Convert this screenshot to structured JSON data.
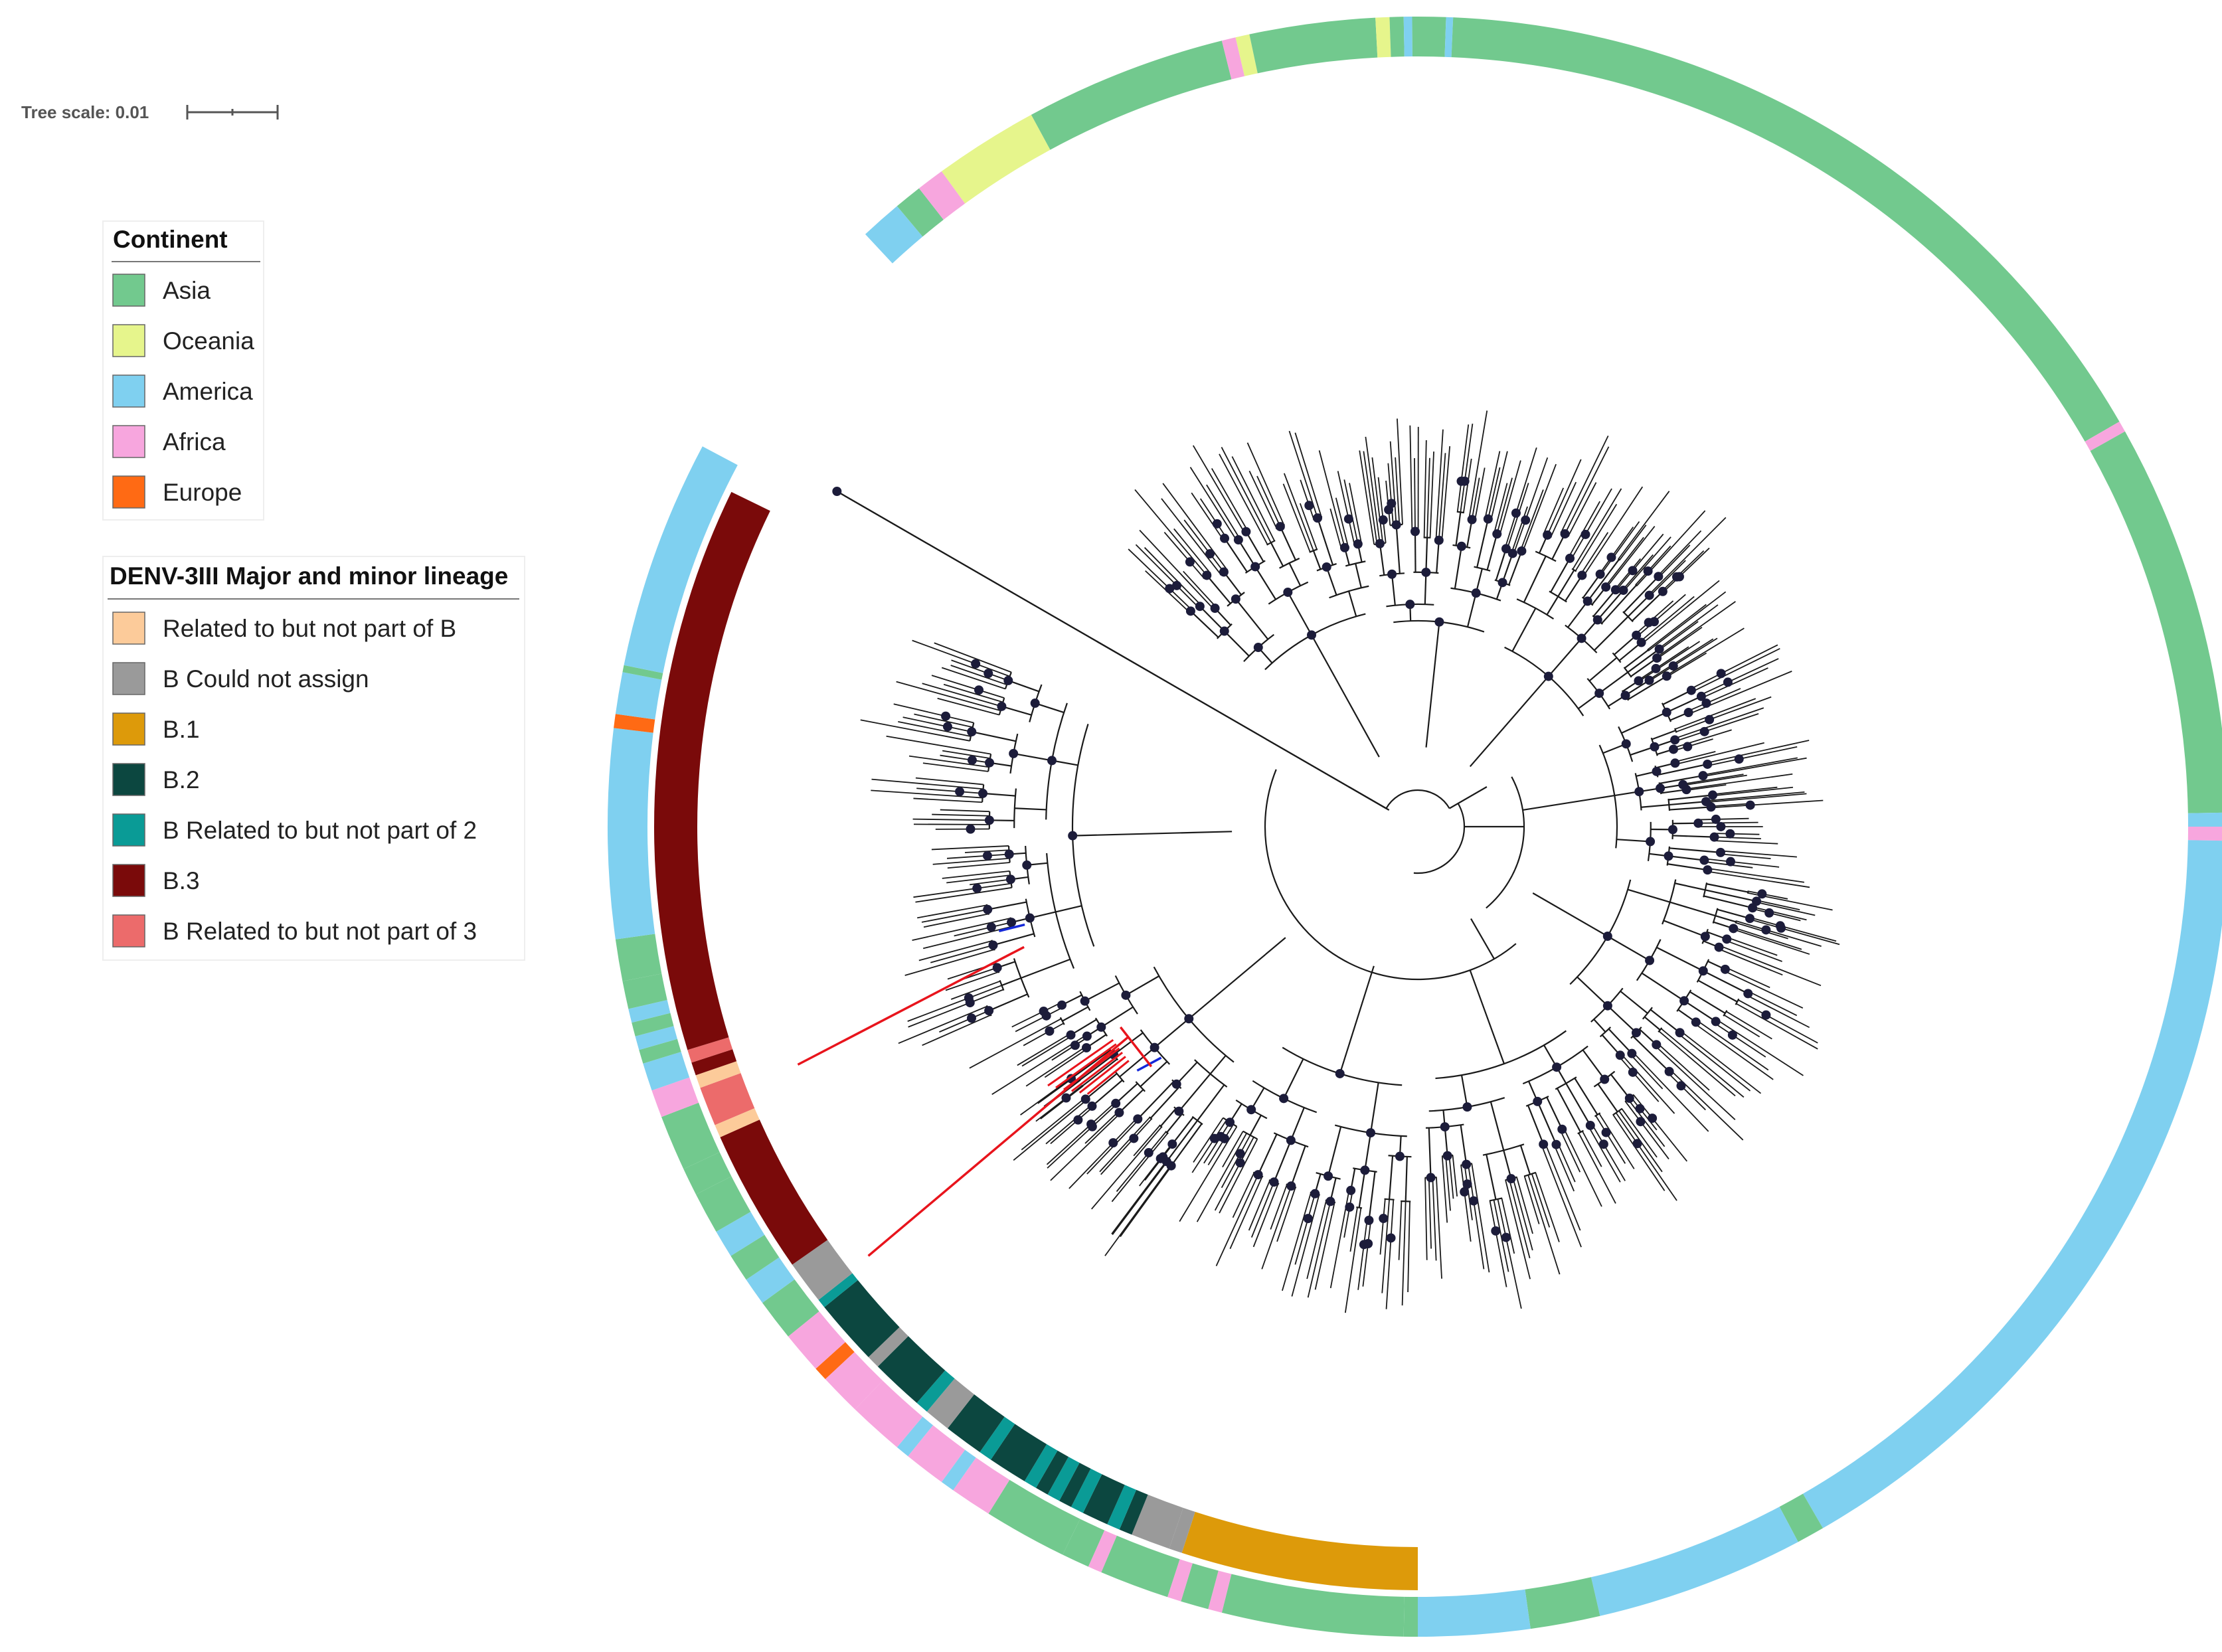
{
  "tree_scale": {
    "label": "Tree scale: 0.01"
  },
  "legend_continent": {
    "title": "Continent",
    "items": [
      {
        "label": "Asia",
        "color": "#72c98e"
      },
      {
        "label": "Oceania",
        "color": "#e6f58c"
      },
      {
        "label": "America",
        "color": "#7fd0f0"
      },
      {
        "label": "Africa",
        "color": "#f7a6de"
      },
      {
        "label": "Europe",
        "color": "#ff6a14"
      }
    ]
  },
  "legend_lineage": {
    "title": "DENV-3III Major and minor lineage",
    "items": [
      {
        "label": "Related to but not part of B",
        "color": "#fccb9a"
      },
      {
        "label": "B Could not assign",
        "color": "#9a9a9a"
      },
      {
        "label": "B.1",
        "color": "#dd9a0a"
      },
      {
        "label": "B.2",
        "color": "#0c4740"
      },
      {
        "label": "B Related to but not part of 2",
        "color": "#0a9b96"
      },
      {
        "label": "B.3",
        "color": "#7a0a0a"
      },
      {
        "label": "B Related to but not part of 3",
        "color": "#ec6b6b"
      }
    ]
  },
  "colors": {
    "branch": "#1a1a1a",
    "node": "#1c1c3a",
    "highlight_red": "#e8141c",
    "highlight_blue": "#1428d8"
  }
}
